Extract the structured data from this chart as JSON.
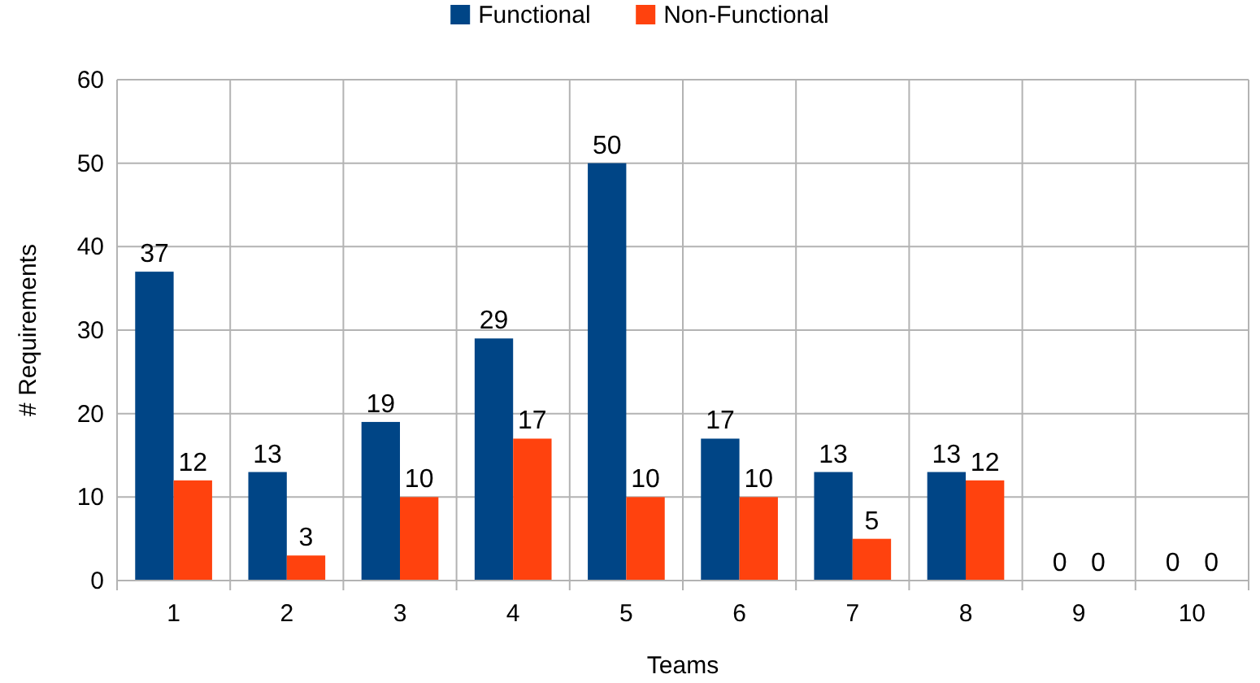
{
  "chart_data": {
    "type": "bar",
    "xlabel": "Teams",
    "ylabel": "# Requirements",
    "categories": [
      "1",
      "2",
      "3",
      "4",
      "5",
      "6",
      "7",
      "8",
      "9",
      "10"
    ],
    "series": [
      {
        "name": "Functional",
        "color": "#004586",
        "values": [
          37,
          13,
          19,
          29,
          50,
          17,
          13,
          13,
          0,
          0
        ]
      },
      {
        "name": "Non-Functional",
        "color": "#ff420e",
        "values": [
          12,
          3,
          10,
          17,
          10,
          10,
          5,
          12,
          0,
          0
        ]
      }
    ],
    "ylim": [
      0,
      60
    ],
    "yticks": [
      0,
      10,
      20,
      30,
      40,
      50,
      60
    ],
    "grid": true,
    "legend": "top",
    "data_labels": true
  }
}
